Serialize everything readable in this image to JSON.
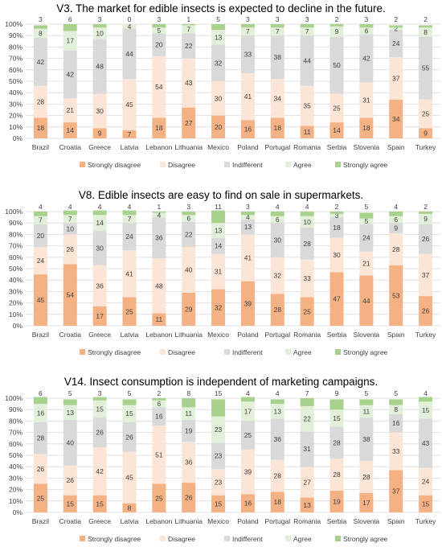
{
  "legend_labels": [
    "Strongly disagree",
    "Disagree",
    "Indifferent",
    "Agree",
    "Strongly agree"
  ],
  "colors": {
    "strongly_disagree": "#f4b183",
    "disagree": "#fbe5d6",
    "indifferent": "#d9d9d9",
    "agree": "#e2f0d9",
    "strongly_agree": "#a9d18e",
    "gridline": "#d9d9d9",
    "text": "#404040"
  },
  "chart_data": [
    {
      "type": "bar",
      "stacked": true,
      "title": "V3. The market for edible insects is expected to decline in the future.",
      "categories": [
        "Brazil",
        "Croatia",
        "Greece",
        "Latvia",
        "Lebanon",
        "Lithuania",
        "Mexico",
        "Poland",
        "Portugal",
        "Romania",
        "Serbia",
        "Slovenia",
        "Spain",
        "Turkey"
      ],
      "yticks": [
        "0%",
        "10%",
        "20%",
        "30%",
        "40%",
        "50%",
        "60%",
        "70%",
        "80%",
        "90%",
        "100%"
      ],
      "ylim": [
        0,
        100
      ],
      "legend_position": "bottom",
      "series": [
        {
          "name": "Strongly disagree",
          "values": [
            18,
            14,
            9,
            7,
            18,
            27,
            20,
            16,
            18,
            11,
            14,
            18,
            34,
            9
          ]
        },
        {
          "name": "Disagree",
          "values": [
            28,
            21,
            30,
            45,
            54,
            43,
            30,
            41,
            34,
            35,
            25,
            31,
            37,
            25
          ]
        },
        {
          "name": "Indifferent",
          "values": [
            42,
            42,
            48,
            44,
            20,
            22,
            32,
            33,
            38,
            44,
            50,
            42,
            24,
            55
          ]
        },
        {
          "name": "Agree",
          "values": [
            8,
            17,
            10,
            4,
            5,
            7,
            13,
            7,
            7,
            7,
            9,
            6,
            2,
            8
          ]
        },
        {
          "name": "Strongly agree",
          "values": [
            3,
            6,
            3,
            0,
            3,
            1,
            5,
            3,
            3,
            3,
            2,
            3,
            2,
            2
          ]
        }
      ]
    },
    {
      "type": "bar",
      "stacked": true,
      "title": "V8. Edible insects are easy to find on sale in supermarkets.",
      "categories": [
        "Brazil",
        "Croatia",
        "Greece",
        "Latvia",
        "Lebanon",
        "Lithuania",
        "Mexico",
        "Poland",
        "Portugal",
        "Romania",
        "Serbia",
        "Slovenia",
        "Spain",
        "Turkey"
      ],
      "yticks": [
        "0%",
        "10%",
        "20%",
        "30%",
        "40%",
        "50%",
        "60%",
        "70%",
        "80%",
        "90%",
        "100%"
      ],
      "ylim": [
        0,
        100
      ],
      "legend_position": "bottom",
      "series": [
        {
          "name": "Strongly disagree",
          "values": [
            45,
            54,
            17,
            25,
            11,
            29,
            32,
            39,
            28,
            25,
            47,
            44,
            53,
            26
          ]
        },
        {
          "name": "Disagree",
          "values": [
            24,
            26,
            36,
            41,
            48,
            40,
            31,
            41,
            32,
            33,
            30,
            21,
            28,
            37
          ]
        },
        {
          "name": "Indifferent",
          "values": [
            20,
            10,
            30,
            24,
            36,
            22,
            14,
            13,
            30,
            28,
            18,
            24,
            9,
            26
          ]
        },
        {
          "name": "Agree",
          "values": [
            7,
            7,
            14,
            7,
            4,
            6,
            13,
            4,
            6,
            10,
            3,
            5,
            6,
            9
          ]
        },
        {
          "name": "Strongly agree",
          "values": [
            4,
            4,
            4,
            4,
            1,
            3,
            11,
            3,
            4,
            4,
            2,
            5,
            4,
            2
          ]
        }
      ]
    },
    {
      "type": "bar",
      "stacked": true,
      "title": "V14. Insect consumption is independent of marketing campaigns.",
      "categories": [
        "Brazil",
        "Croatia",
        "Greece",
        "Latvia",
        "Lebanon",
        "Lithuania",
        "Mexico",
        "Poland",
        "Portugal",
        "Romania",
        "Serbia",
        "Slovenia",
        "Spain",
        "Turkey"
      ],
      "yticks": [
        "0%",
        "10%",
        "20%",
        "30%",
        "40%",
        "50%",
        "60%",
        "70%",
        "80%",
        "90%",
        "100%"
      ],
      "ylim": [
        0,
        100
      ],
      "legend_position": "bottom",
      "series": [
        {
          "name": "Strongly disagree",
          "values": [
            25,
            15,
            15,
            8,
            25,
            26,
            15,
            16,
            18,
            13,
            19,
            17,
            37,
            15
          ]
        },
        {
          "name": "Disagree",
          "values": [
            26,
            26,
            42,
            45,
            51,
            36,
            23,
            39,
            28,
            27,
            28,
            28,
            33,
            24
          ]
        },
        {
          "name": "Indifferent",
          "values": [
            28,
            40,
            26,
            26,
            16,
            19,
            23,
            25,
            36,
            31,
            28,
            38,
            16,
            43
          ]
        },
        {
          "name": "Agree",
          "values": [
            16,
            13,
            15,
            15,
            6,
            11,
            23,
            17,
            13,
            22,
            15,
            11,
            8,
            15
          ]
        },
        {
          "name": "Strongly agree",
          "values": [
            6,
            5,
            3,
            5,
            2,
            8,
            15,
            4,
            4,
            7,
            9,
            5,
            5,
            4
          ]
        }
      ]
    }
  ]
}
